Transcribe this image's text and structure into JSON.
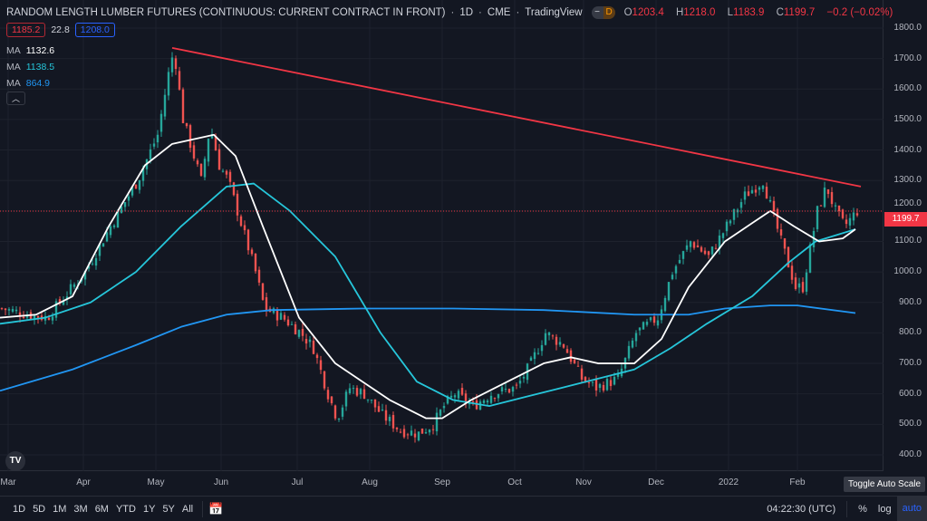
{
  "header": {
    "title": "RANDOM LENGTH LUMBER FUTURES (CONTINUOUS: CURRENT CONTRACT IN FRONT)",
    "interval": "1D",
    "exchange": "CME",
    "source": "TradingView",
    "pill_left": "−",
    "pill_right": "D",
    "ohlc": {
      "o_label": "O",
      "o": "1203.4",
      "h_label": "H",
      "h": "1218.0",
      "l_label": "L",
      "l": "1183.9",
      "c_label": "C",
      "c": "1199.7",
      "change": "−0.2 (−0.02%)"
    }
  },
  "quote": {
    "bid": "1185.2",
    "spread": "22.8",
    "ask": "1208.0"
  },
  "indicators": [
    {
      "label": "MA",
      "value": "1132.6",
      "color": "#ffffff"
    },
    {
      "label": "MA",
      "value": "1138.5",
      "color": "#26c6da"
    },
    {
      "label": "MA",
      "value": "864.9",
      "color": "#2196f3"
    }
  ],
  "collapse_icon": "chevron-up-icon",
  "logo": "TV",
  "price_axis": {
    "ticks": [
      "1800.0",
      "1700.0",
      "1600.0",
      "1500.0",
      "1400.0",
      "1300.0",
      "1200.0",
      "1100.0",
      "1000.0",
      "900.0",
      "800.0",
      "700.0",
      "600.0",
      "500.0",
      "400.0"
    ],
    "current": "1199.7"
  },
  "time_axis": {
    "ticks": [
      "Mar",
      "Apr",
      "May",
      "Jun",
      "Jul",
      "Aug",
      "Sep",
      "Oct",
      "Nov",
      "Dec",
      "2022",
      "Feb"
    ]
  },
  "tooltip": "Toggle Auto Scale",
  "bottom": {
    "ranges": [
      "1D",
      "5D",
      "1M",
      "3M",
      "6M",
      "YTD",
      "1Y",
      "5Y",
      "All"
    ],
    "time": "04:22:30 (UTC)",
    "percent": "%",
    "log": "log",
    "auto": "auto"
  },
  "colors": {
    "up": "#26a69a",
    "down": "#ef5350",
    "trendline": "#f23645",
    "bg": "#131722"
  },
  "chart_data": {
    "type": "candlestick",
    "ylim": [
      350,
      1850
    ],
    "xlim_days": [
      0,
      244
    ],
    "month_start_days": [
      2,
      23,
      43,
      61,
      82,
      102,
      122,
      142,
      161,
      181,
      201,
      220
    ],
    "price_path": [
      [
        0,
        880
      ],
      [
        7.5,
        860
      ],
      [
        12.5,
        850
      ],
      [
        23,
        1000
      ],
      [
        30,
        1150
      ],
      [
        37.5,
        1300
      ],
      [
        43,
        1450
      ],
      [
        46,
        1650
      ],
      [
        47.5,
        1730
      ],
      [
        50,
        1500
      ],
      [
        52.5,
        1400
      ],
      [
        55,
        1300
      ],
      [
        57.5,
        1480
      ],
      [
        60,
        1350
      ],
      [
        62.5,
        1300
      ],
      [
        65,
        1200
      ],
      [
        67.5,
        1100
      ],
      [
        70,
        1000
      ],
      [
        72.5,
        880
      ],
      [
        77.5,
        850
      ],
      [
        82.5,
        800
      ],
      [
        86,
        750
      ],
      [
        90,
        600
      ],
      [
        92.5,
        520
      ],
      [
        96,
        620
      ],
      [
        100,
        600
      ],
      [
        105,
        530
      ],
      [
        110,
        480
      ],
      [
        115,
        470
      ],
      [
        119,
        500
      ],
      [
        122,
        560
      ],
      [
        125,
        600
      ],
      [
        130,
        560
      ],
      [
        135,
        600
      ],
      [
        142,
        620
      ],
      [
        146,
        700
      ],
      [
        150,
        800
      ],
      [
        155,
        760
      ],
      [
        160,
        650
      ],
      [
        164,
        620
      ],
      [
        170,
        650
      ],
      [
        175,
        800
      ],
      [
        181,
        850
      ],
      [
        185,
        1000
      ],
      [
        190,
        1100
      ],
      [
        195,
        1050
      ],
      [
        200,
        1150
      ],
      [
        205,
        1250
      ],
      [
        210,
        1300
      ],
      [
        212.5,
        1200
      ],
      [
        215,
        1100
      ],
      [
        219,
        950
      ],
      [
        221,
        950
      ],
      [
        225,
        1200
      ],
      [
        227.5,
        1280
      ],
      [
        230,
        1200
      ],
      [
        232.5,
        1150
      ],
      [
        236,
        1200
      ]
    ],
    "ma20": [
      [
        0,
        850
      ],
      [
        10,
        860
      ],
      [
        20,
        920
      ],
      [
        30,
        1150
      ],
      [
        40,
        1350
      ],
      [
        47.5,
        1420
      ],
      [
        59,
        1450
      ],
      [
        65,
        1380
      ],
      [
        72.5,
        1150
      ],
      [
        82.5,
        850
      ],
      [
        92.5,
        700
      ],
      [
        100,
        640
      ],
      [
        107.5,
        580
      ],
      [
        117.5,
        520
      ],
      [
        122,
        520
      ],
      [
        130,
        580
      ],
      [
        140,
        640
      ],
      [
        150,
        700
      ],
      [
        157.5,
        720
      ],
      [
        165,
        700
      ],
      [
        175,
        700
      ],
      [
        182.5,
        780
      ],
      [
        190,
        950
      ],
      [
        200,
        1100
      ],
      [
        207.5,
        1160
      ],
      [
        212.5,
        1200
      ],
      [
        219,
        1150
      ],
      [
        226,
        1100
      ],
      [
        232.5,
        1110
      ],
      [
        236,
        1140
      ]
    ],
    "ma50": [
      [
        0,
        830
      ],
      [
        12.5,
        850
      ],
      [
        25,
        900
      ],
      [
        37.5,
        1000
      ],
      [
        50,
        1150
      ],
      [
        62.5,
        1280
      ],
      [
        70,
        1290
      ],
      [
        80,
        1200
      ],
      [
        92.5,
        1050
      ],
      [
        105,
        800
      ],
      [
        115,
        640
      ],
      [
        125,
        580
      ],
      [
        135,
        560
      ],
      [
        145,
        590
      ],
      [
        155,
        620
      ],
      [
        165,
        650
      ],
      [
        175,
        680
      ],
      [
        185,
        750
      ],
      [
        195,
        830
      ],
      [
        207.5,
        920
      ],
      [
        217.5,
        1030
      ],
      [
        225,
        1100
      ],
      [
        236,
        1140
      ]
    ],
    "ma200": [
      [
        0,
        610
      ],
      [
        20,
        680
      ],
      [
        37.5,
        760
      ],
      [
        50,
        820
      ],
      [
        62.5,
        860
      ],
      [
        75,
        875
      ],
      [
        100,
        880
      ],
      [
        125,
        880
      ],
      [
        150,
        875
      ],
      [
        175,
        860
      ],
      [
        190,
        860
      ],
      [
        200,
        880
      ],
      [
        212.5,
        890
      ],
      [
        220,
        890
      ],
      [
        236,
        865
      ]
    ],
    "trendline": [
      [
        47.5,
        1735
      ],
      [
        237.5,
        1280
      ]
    ],
    "last_price": 1199.7
  }
}
